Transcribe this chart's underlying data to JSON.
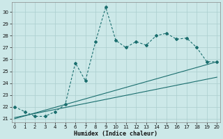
{
  "xlabel": "Humidex (Indice chaleur)",
  "x_ticks": [
    0,
    1,
    2,
    3,
    4,
    5,
    6,
    7,
    8,
    9,
    10,
    11,
    12,
    13,
    14,
    15,
    16,
    17,
    18,
    19,
    20
  ],
  "ylim": [
    20.7,
    30.8
  ],
  "xlim": [
    -0.3,
    20.3
  ],
  "yticks": [
    21,
    22,
    23,
    24,
    25,
    26,
    27,
    28,
    29,
    30
  ],
  "bg_color": "#cce8e8",
  "grid_color": "#aacece",
  "line_color": "#1a6e6e",
  "main_line": {
    "x": [
      0,
      1,
      2,
      3,
      4,
      5,
      6,
      7,
      8,
      9,
      10,
      11,
      12,
      13,
      14,
      15,
      16,
      17,
      18,
      19,
      20
    ],
    "y": [
      22.0,
      21.6,
      21.2,
      21.2,
      21.6,
      22.2,
      25.7,
      24.2,
      27.5,
      30.4,
      27.6,
      27.0,
      27.5,
      27.2,
      28.0,
      28.2,
      27.7,
      27.8,
      27.0,
      25.8,
      25.8
    ]
  },
  "line2": {
    "x": [
      0,
      20
    ],
    "y": [
      21.0,
      25.8
    ]
  },
  "line3": {
    "x": [
      0,
      20
    ],
    "y": [
      21.1,
      24.5
    ]
  }
}
